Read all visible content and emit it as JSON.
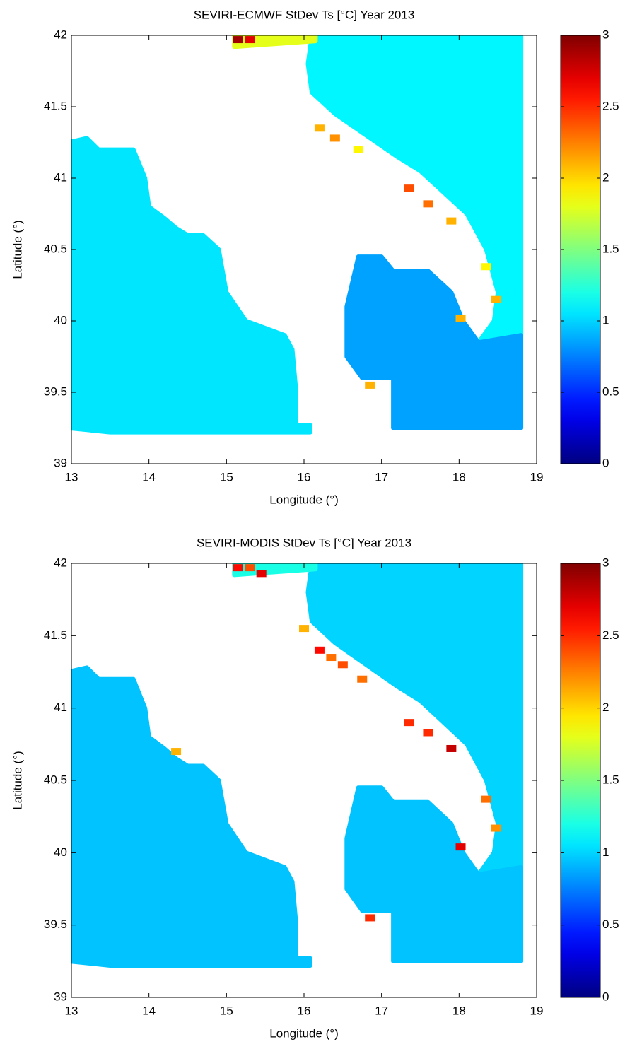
{
  "chart_data": [
    {
      "type": "map",
      "title": "SEVIRI-ECMWF StDev Ts [°C] Year 2013",
      "xlabel": "Longitude (°)",
      "ylabel": "Latitude (°)",
      "xlim": [
        13,
        19
      ],
      "ylim": [
        39,
        42
      ],
      "xticks": [
        13,
        14,
        15,
        16,
        17,
        18,
        19
      ],
      "yticks": [
        39,
        39.5,
        40,
        40.5,
        41,
        41.5,
        42
      ],
      "colormap": "jet",
      "clim": [
        0,
        3
      ],
      "cticks": [
        0,
        0.5,
        1,
        1.5,
        2,
        2.5,
        3
      ],
      "regions": [
        {
          "lon": [
            12.95,
            13.2,
            13.35,
            13.8,
            13.95,
            14.0,
            14.2,
            14.35,
            14.5,
            14.7,
            14.9,
            15.0,
            15.25,
            15.5,
            15.75,
            15.85,
            15.9,
            15.9,
            16.08,
            16.08,
            13.5,
            12.95
          ],
          "lat": [
            41.25,
            41.28,
            41.2,
            41.2,
            41.0,
            40.8,
            40.72,
            40.65,
            40.6,
            40.6,
            40.5,
            40.2,
            40.0,
            39.95,
            39.9,
            39.8,
            39.5,
            39.27,
            39.27,
            39.22,
            39.22,
            39.25
          ],
          "value": 1.05
        },
        {
          "lon": [
            16.1,
            18.8,
            18.8,
            18.25,
            18.45,
            18.5,
            18.35,
            18.1,
            17.8,
            17.5,
            17.2,
            16.8,
            16.4,
            16.1,
            16.05
          ],
          "lat": [
            42.0,
            42.0,
            39.9,
            39.85,
            40.0,
            40.2,
            40.5,
            40.75,
            40.9,
            41.05,
            41.15,
            41.3,
            41.45,
            41.6,
            41.8
          ],
          "value": 1.1
        },
        {
          "lon": [
            16.7,
            17.0,
            17.15,
            17.6,
            17.9,
            18.05,
            18.25,
            18.8,
            18.8,
            17.15,
            17.15,
            16.75,
            16.55,
            16.55
          ],
          "lat": [
            40.45,
            40.45,
            40.35,
            40.35,
            40.2,
            40.0,
            39.85,
            39.9,
            39.25,
            39.25,
            39.6,
            39.6,
            39.75,
            40.1
          ],
          "value": 0.85
        },
        {
          "lon": [
            15.1,
            16.15,
            16.15,
            15.1
          ],
          "lat": [
            42.02,
            42.02,
            41.96,
            41.92
          ],
          "value": 1.8
        }
      ],
      "points": {
        "lon": [
          15.15,
          15.3,
          15.5,
          16.2,
          16.4,
          16.7,
          17.35,
          17.6,
          17.9,
          18.35,
          18.48,
          18.02,
          16.85
        ],
        "lat": [
          41.97,
          41.97,
          41.95,
          41.35,
          41.28,
          41.2,
          40.93,
          40.82,
          40.7,
          40.38,
          40.15,
          40.02,
          39.55
        ],
        "values": [
          2.9,
          2.7,
          1.8,
          2.1,
          2.2,
          1.9,
          2.4,
          2.3,
          2.1,
          1.9,
          2.1,
          2.1,
          2.1
        ]
      }
    },
    {
      "type": "map",
      "title": "SEVIRI-MODIS StDev Ts [°C] Year 2013",
      "xlabel": "Longitude (°)",
      "ylabel": "Latitude (°)",
      "xlim": [
        13,
        19
      ],
      "ylim": [
        39,
        42
      ],
      "xticks": [
        13,
        14,
        15,
        16,
        17,
        18,
        19
      ],
      "yticks": [
        39,
        39.5,
        40,
        40.5,
        41,
        41.5,
        42
      ],
      "colormap": "jet",
      "clim": [
        0,
        3
      ],
      "cticks": [
        0,
        0.5,
        1,
        1.5,
        2,
        2.5,
        3
      ],
      "regions": [
        {
          "lon": [
            12.95,
            13.2,
            13.35,
            13.8,
            13.95,
            14.0,
            14.2,
            14.35,
            14.5,
            14.7,
            14.9,
            15.0,
            15.25,
            15.5,
            15.75,
            15.85,
            15.9,
            15.9,
            16.08,
            16.08,
            13.5,
            12.95
          ],
          "lat": [
            41.25,
            41.28,
            41.2,
            41.2,
            41.0,
            40.8,
            40.72,
            40.65,
            40.6,
            40.6,
            40.5,
            40.2,
            40.0,
            39.95,
            39.9,
            39.8,
            39.5,
            39.27,
            39.27,
            39.22,
            39.22,
            39.25
          ],
          "value": 0.95
        },
        {
          "lon": [
            16.1,
            18.8,
            18.8,
            18.25,
            18.45,
            18.5,
            18.35,
            18.1,
            17.8,
            17.5,
            17.2,
            16.8,
            16.4,
            16.1,
            16.05
          ],
          "lat": [
            42.0,
            42.0,
            39.9,
            39.85,
            40.0,
            40.2,
            40.5,
            40.75,
            40.9,
            41.05,
            41.15,
            41.3,
            41.45,
            41.6,
            41.8
          ],
          "value": 1.0
        },
        {
          "lon": [
            16.7,
            17.0,
            17.15,
            17.6,
            17.9,
            18.05,
            18.25,
            18.8,
            18.8,
            17.15,
            17.15,
            16.75,
            16.55,
            16.55
          ],
          "lat": [
            40.45,
            40.45,
            40.35,
            40.35,
            40.2,
            40.0,
            39.85,
            39.9,
            39.25,
            39.25,
            39.6,
            39.6,
            39.75,
            40.1
          ],
          "value": 0.95
        },
        {
          "lon": [
            15.1,
            16.15,
            16.15,
            15.1
          ],
          "lat": [
            42.02,
            42.02,
            41.96,
            41.92
          ],
          "value": 1.2
        }
      ],
      "points": {
        "lon": [
          15.15,
          15.3,
          15.45,
          16.0,
          16.2,
          16.35,
          16.5,
          16.75,
          17.35,
          17.6,
          17.9,
          18.35,
          18.48,
          18.02,
          16.85,
          14.35
        ],
        "lat": [
          41.97,
          41.97,
          41.93,
          41.55,
          41.4,
          41.35,
          41.3,
          41.2,
          40.9,
          40.83,
          40.72,
          40.37,
          40.17,
          40.04,
          39.55,
          40.7
        ],
        "values": [
          2.6,
          2.4,
          2.7,
          2.1,
          2.6,
          2.3,
          2.4,
          2.3,
          2.5,
          2.5,
          2.8,
          2.3,
          2.2,
          2.7,
          2.5,
          2.1
        ]
      }
    }
  ]
}
